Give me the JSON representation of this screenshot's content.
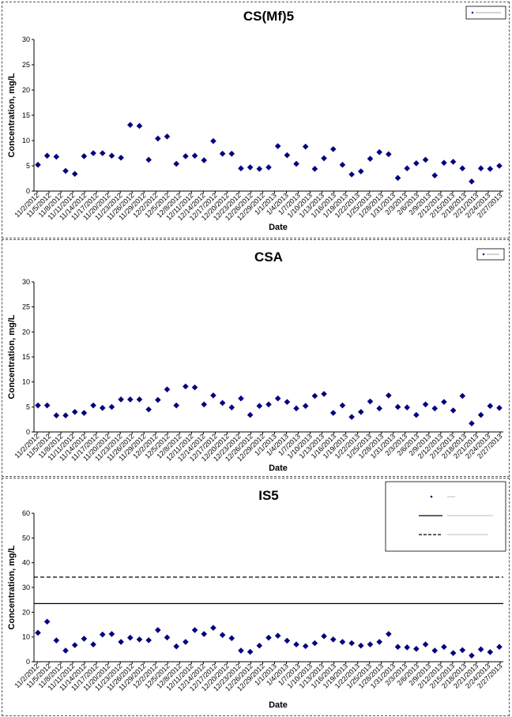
{
  "colors": {
    "marker": "#00007f",
    "axis": "#000000",
    "ref_line": "#000000"
  },
  "chart_data": [
    {
      "type": "scatter",
      "title": "CS(Mf)5",
      "xlabel": "Date",
      "ylabel": "Concentration, mg/L",
      "ylim": [
        0,
        30
      ],
      "yticks": [
        0,
        5,
        10,
        15,
        20,
        25,
        30
      ],
      "grid": false,
      "legend_position": "top-right",
      "x_tick_labels": [
        "11/2/2012",
        "11/5/2012",
        "11/8/2012",
        "11/11/2012",
        "11/14/2012",
        "11/17/2012",
        "11/20/2012",
        "11/23/2012",
        "11/26/2012",
        "11/29/2012",
        "12/2/2012",
        "12/5/2012",
        "12/8/2012",
        "12/11/2012",
        "12/14/2012",
        "12/17/2012",
        "12/20/2012",
        "12/23/2012",
        "12/26/2012",
        "12/29/2012",
        "1/1/2013",
        "1/4/2013",
        "1/7/2013",
        "1/10/2013",
        "1/13/2013",
        "1/16/2013",
        "1/19/2013",
        "1/22/2013",
        "1/25/2013",
        "1/28/2013",
        "1/31/2013",
        "2/3/2013",
        "2/6/2013",
        "2/9/2013",
        "2/12/2013",
        "2/15/2013",
        "2/18/2013",
        "2/21/2013",
        "2/24/2013",
        "2/27/2013"
      ],
      "series": [
        {
          "name": "",
          "values": [
            5.2,
            7.0,
            6.8,
            4.0,
            3.4,
            6.9,
            7.5,
            7.5,
            7.0,
            6.6,
            13.1,
            12.9,
            6.2,
            10.4,
            10.8,
            5.4,
            6.9,
            7.0,
            6.1,
            9.9,
            7.4,
            7.4,
            4.5,
            4.7,
            4.4,
            4.7,
            8.9,
            7.1,
            5.4,
            8.8,
            4.4,
            6.5,
            8.3,
            5.2,
            3.3,
            3.9,
            6.4,
            7.7,
            7.3,
            2.6,
            4.5,
            5.5,
            6.2,
            3.1,
            5.6,
            5.8,
            4.5,
            1.9,
            4.5,
            4.4,
            5.0
          ]
        }
      ],
      "ref_lines": []
    },
    {
      "type": "scatter",
      "title": "CSA",
      "xlabel": "Date",
      "ylabel": "Concentration, mg/L",
      "ylim": [
        0,
        30
      ],
      "yticks": [
        0,
        5,
        10,
        15,
        20,
        25,
        30
      ],
      "grid": false,
      "legend_position": "top-right",
      "x_tick_labels": [
        "11/2/2012",
        "11/5/2012",
        "11/8/2012",
        "11/11/2012",
        "11/14/2012",
        "11/17/2012",
        "11/20/2012",
        "11/23/2012",
        "11/26/2012",
        "11/29/2012",
        "12/2/2012",
        "12/5/2012",
        "12/8/2012",
        "12/11/2012",
        "12/14/2012",
        "12/17/2012",
        "12/20/2012",
        "12/23/2012",
        "12/26/2012",
        "12/29/2012",
        "1/1/2013",
        "1/4/2013",
        "1/7/2013",
        "1/10/2013",
        "1/13/2013",
        "1/16/2013",
        "1/19/2013",
        "1/22/2013",
        "1/25/2013",
        "1/28/2013",
        "1/31/2013",
        "2/3/2013",
        "2/6/2013",
        "2/9/2013",
        "2/12/2013",
        "2/15/2013",
        "2/18/2013",
        "2/21/2013",
        "2/24/2013",
        "2/27/2013"
      ],
      "series": [
        {
          "name": "",
          "values": [
            5.3,
            5.3,
            3.3,
            3.3,
            4.0,
            3.8,
            5.3,
            4.8,
            5.0,
            6.5,
            6.5,
            6.5,
            4.5,
            6.4,
            8.5,
            5.3,
            9.1,
            8.9,
            5.5,
            7.3,
            5.8,
            4.9,
            6.7,
            3.4,
            5.2,
            5.5,
            6.7,
            6.0,
            4.7,
            5.2,
            7.2,
            7.6,
            3.8,
            5.3,
            3.0,
            4.0,
            6.1,
            4.7,
            7.3,
            5.0,
            4.9,
            3.4,
            5.5,
            4.7,
            6.0,
            4.3,
            7.2,
            1.7,
            3.4,
            5.2,
            4.8
          ]
        }
      ],
      "ref_lines": []
    },
    {
      "type": "scatter",
      "title": "IS5",
      "xlabel": "Date",
      "ylabel": "Concentration, mg/L",
      "ylim": [
        0,
        60
      ],
      "yticks": [
        0,
        10,
        20,
        30,
        40,
        50,
        60
      ],
      "grid": false,
      "legend_position": "top-right",
      "x_tick_labels": [
        "11/2/2012",
        "11/5/2012",
        "11/8/2012",
        "11/11/2012",
        "11/14/2012",
        "11/17/2012",
        "11/20/2012",
        "11/23/2012",
        "11/26/2012",
        "11/29/2012",
        "12/2/2012",
        "12/5/2012",
        "12/8/2012",
        "12/11/2012",
        "12/14/2012",
        "12/17/2012",
        "12/20/2012",
        "12/23/2012",
        "12/26/2012",
        "12/29/2012",
        "1/1/2013",
        "1/4/2013",
        "1/7/2013",
        "1/10/2013",
        "1/13/2013",
        "1/16/2013",
        "1/19/2013",
        "1/22/2013",
        "1/25/2013",
        "1/28/2013",
        "1/31/2013",
        "2/3/2013",
        "2/6/2013",
        "2/9/2013",
        "2/12/2013",
        "2/15/2013",
        "2/18/2013",
        "2/21/2013",
        "2/24/2013",
        "2/27/2013"
      ],
      "series": [
        {
          "name": "",
          "values": [
            11.7,
            16.2,
            8.6,
            4.5,
            6.7,
            9.3,
            7.0,
            11.0,
            11.2,
            8.0,
            9.7,
            9.0,
            8.7,
            12.8,
            9.8,
            6.2,
            8.0,
            12.8,
            11.2,
            13.7,
            10.8,
            9.5,
            4.5,
            4.0,
            6.5,
            9.7,
            10.5,
            8.5,
            7.0,
            6.3,
            7.5,
            10.3,
            9.0,
            8.0,
            7.5,
            6.5,
            7.0,
            8.0,
            11.2,
            6.0,
            5.8,
            5.2,
            7.0,
            4.5,
            6.0,
            3.5,
            4.7,
            2.5,
            5.0,
            3.9,
            6.0
          ]
        }
      ],
      "ref_lines": [
        {
          "value": 23.5,
          "dash": "solid"
        },
        {
          "value": 34.2,
          "dash": "dashed"
        }
      ]
    }
  ]
}
